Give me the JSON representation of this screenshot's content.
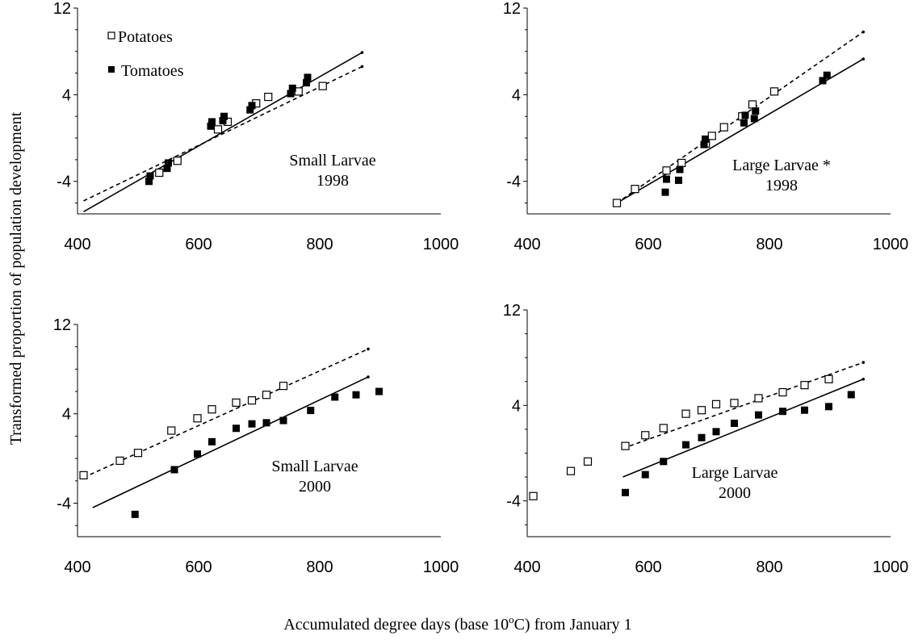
{
  "figure": {
    "y_axis_label": "Transformed  proportion of population development",
    "x_axis_label_prefix": "Accumulated degree days (base 10",
    "x_axis_label_sup": "o",
    "x_axis_label_suffix": "C) from January 1"
  },
  "legend": {
    "entries": [
      {
        "label": "Potatoes",
        "marker": "open-square"
      },
      {
        "label": "Tomatoes",
        "marker": "filled-square"
      }
    ]
  },
  "chart_data": [
    {
      "type": "scatter",
      "panel": "top-left",
      "annotation": [
        "Small Larvae",
        "1998"
      ],
      "xlim": [
        400,
        1000
      ],
      "ylim": [
        -7,
        12
      ],
      "x_ticks": [
        "400",
        "600",
        "800",
        "1000"
      ],
      "y_ticks": [
        "12",
        "4",
        "-4"
      ],
      "series": [
        {
          "name": "Potatoes",
          "marker": "open-square",
          "x": [
            535,
            565,
            632,
            648,
            695,
            715,
            765,
            805
          ],
          "y": [
            -3.2,
            -2.1,
            0.8,
            1.5,
            3.2,
            3.8,
            4.3,
            4.8
          ]
        },
        {
          "name": "Tomatoes",
          "marker": "filled-square",
          "x": [
            518,
            520,
            548,
            550,
            620,
            622,
            640,
            642,
            685,
            688,
            752,
            755,
            778,
            780
          ],
          "y": [
            -4.0,
            -3.5,
            -2.8,
            -2.3,
            1.1,
            1.5,
            1.6,
            2.0,
            2.6,
            3.0,
            4.1,
            4.6,
            5.1,
            5.6
          ]
        }
      ],
      "fit_lines": [
        {
          "series": "Potatoes",
          "style": "dashed",
          "x": [
            410,
            870
          ],
          "y": [
            -5.8,
            6.6
          ]
        },
        {
          "series": "Tomatoes",
          "style": "solid",
          "x": [
            410,
            870
          ],
          "y": [
            -6.8,
            7.9
          ]
        }
      ]
    },
    {
      "type": "scatter",
      "panel": "top-right",
      "annotation": [
        "Large Larvae  *",
        "1998"
      ],
      "xlim": [
        400,
        1000
      ],
      "ylim": [
        -7,
        12
      ],
      "x_ticks": [
        "400",
        "600",
        "800",
        "1000"
      ],
      "y_ticks": [
        "12",
        "4",
        "-4"
      ],
      "series": [
        {
          "name": "Potatoes",
          "marker": "open-square",
          "x": [
            548,
            578,
            630,
            655,
            695,
            705,
            725,
            755,
            772,
            808
          ],
          "y": [
            -6.0,
            -4.7,
            -3.0,
            -2.3,
            -0.5,
            0.2,
            1.0,
            2.0,
            3.1,
            4.3
          ]
        },
        {
          "name": "Tomatoes",
          "marker": "filled-square",
          "x": [
            628,
            630,
            650,
            652,
            692,
            694,
            758,
            760,
            775,
            777,
            888,
            895
          ],
          "y": [
            -5.0,
            -3.8,
            -3.9,
            -2.9,
            -0.6,
            -0.1,
            1.4,
            2.1,
            1.8,
            2.5,
            5.3,
            5.8
          ]
        }
      ],
      "fit_lines": [
        {
          "series": "Potatoes",
          "style": "dashed",
          "x": [
            548,
            955
          ],
          "y": [
            -6.0,
            9.8
          ]
        },
        {
          "series": "Tomatoes",
          "style": "solid",
          "x": [
            548,
            955
          ],
          "y": [
            -6.0,
            7.3
          ]
        }
      ]
    },
    {
      "type": "scatter",
      "panel": "bottom-left",
      "annotation": [
        "Small Larvae",
        "2000"
      ],
      "xlim": [
        400,
        1000
      ],
      "ylim": [
        -7,
        12
      ],
      "x_ticks": [
        "400",
        "600",
        "800",
        "1000"
      ],
      "y_ticks": [
        "12",
        "4",
        "-4"
      ],
      "series": [
        {
          "name": "Potatoes",
          "marker": "open-square",
          "x": [
            410,
            470,
            500,
            555,
            598,
            622,
            662,
            688,
            712,
            740
          ],
          "y": [
            -1.5,
            -0.2,
            0.5,
            2.5,
            3.6,
            4.4,
            5.0,
            5.2,
            5.7,
            6.5
          ]
        },
        {
          "name": "Tomatoes",
          "marker": "filled-square",
          "x": [
            495,
            560,
            598,
            622,
            662,
            688,
            712,
            740,
            785,
            825,
            860,
            898
          ],
          "y": [
            -5.0,
            -1.0,
            0.4,
            1.5,
            2.7,
            3.1,
            3.2,
            3.4,
            4.3,
            5.5,
            5.7,
            6.0
          ]
        }
      ],
      "fit_lines": [
        {
          "series": "Potatoes",
          "style": "dashed",
          "x": [
            410,
            880
          ],
          "y": [
            -1.7,
            9.8
          ]
        },
        {
          "series": "Tomatoes",
          "style": "solid",
          "x": [
            425,
            880
          ],
          "y": [
            -4.4,
            7.3
          ]
        }
      ]
    },
    {
      "type": "scatter",
      "panel": "bottom-right",
      "annotation": [
        "Large Larvae",
        "2000"
      ],
      "xlim": [
        400,
        1000
      ],
      "ylim": [
        -7,
        12
      ],
      "x_ticks": [
        "400",
        "600",
        "800",
        "1000"
      ],
      "y_ticks": [
        "12",
        "4",
        "-4"
      ],
      "series": [
        {
          "name": "Potatoes",
          "marker": "open-square",
          "x": [
            410,
            472,
            500,
            562,
            595,
            625,
            662,
            688,
            712,
            742,
            782,
            822,
            858,
            898
          ],
          "y": [
            -3.6,
            -1.5,
            -0.7,
            0.6,
            1.5,
            2.1,
            3.3,
            3.6,
            4.1,
            4.2,
            4.6,
            5.1,
            5.7,
            6.2
          ]
        },
        {
          "name": "Tomatoes",
          "marker": "filled-square",
          "x": [
            562,
            595,
            625,
            662,
            688,
            712,
            742,
            782,
            822,
            858,
            898,
            935
          ],
          "y": [
            -3.3,
            -1.8,
            -0.7,
            0.7,
            1.3,
            1.8,
            2.5,
            3.2,
            3.5,
            3.6,
            3.9,
            4.9
          ]
        }
      ],
      "fit_lines": [
        {
          "series": "Potatoes",
          "style": "dashed",
          "x": [
            558,
            955
          ],
          "y": [
            0.4,
            7.6
          ]
        },
        {
          "series": "Tomatoes",
          "style": "solid",
          "x": [
            558,
            955
          ],
          "y": [
            -2.0,
            6.2
          ]
        }
      ]
    }
  ]
}
